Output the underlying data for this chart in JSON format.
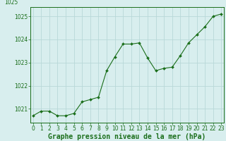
{
  "hours": [
    0,
    1,
    2,
    3,
    4,
    5,
    6,
    7,
    8,
    9,
    10,
    11,
    12,
    13,
    14,
    15,
    16,
    17,
    18,
    19,
    20,
    21,
    22,
    23
  ],
  "pressure": [
    1020.7,
    1020.9,
    1020.9,
    1020.7,
    1020.7,
    1020.8,
    1021.3,
    1021.4,
    1021.5,
    1022.65,
    1023.25,
    1023.8,
    1023.8,
    1023.85,
    1023.2,
    1022.65,
    1022.75,
    1022.8,
    1023.3,
    1023.85,
    1024.2,
    1024.55,
    1025.0,
    1025.1
  ],
  "line_color": "#1a6e1a",
  "marker": "D",
  "marker_size": 2.0,
  "bg_color": "#d8eeee",
  "grid_color": "#b8d8d8",
  "ylim": [
    1020.4,
    1025.4
  ],
  "yticks": [
    1021,
    1022,
    1023,
    1024,
    1025
  ],
  "xticks": [
    0,
    1,
    2,
    3,
    4,
    5,
    6,
    7,
    8,
    9,
    10,
    11,
    12,
    13,
    14,
    15,
    16,
    17,
    18,
    19,
    20,
    21,
    22,
    23
  ],
  "xlabel": "Graphe pression niveau de la mer (hPa)",
  "xlabel_fontsize": 7,
  "tick_fontsize": 5.5,
  "ytick_fontsize": 5.5,
  "spine_color": "#1a6e1a",
  "top_label": "1025"
}
